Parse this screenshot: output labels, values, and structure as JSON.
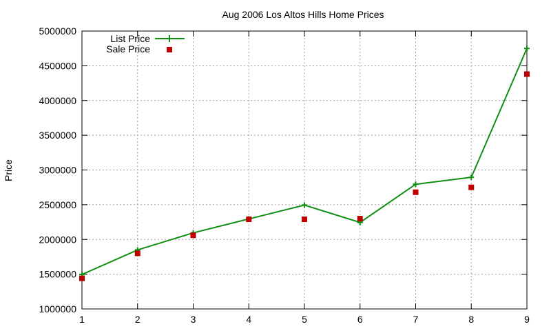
{
  "chart_data": {
    "type": "line",
    "title": "Aug 2006 Los Altos Hills Home Prices",
    "xlabel": "",
    "ylabel": "Price",
    "xlim": [
      1,
      9
    ],
    "ylim": [
      1000000,
      5000000
    ],
    "x_ticks": [
      1,
      2,
      3,
      4,
      5,
      6,
      7,
      8,
      9
    ],
    "y_ticks": [
      1000000,
      1500000,
      2000000,
      2500000,
      3000000,
      3500000,
      4000000,
      4500000,
      5000000
    ],
    "grid": true,
    "legend_position": "top-left",
    "x": [
      1,
      2,
      3,
      4,
      5,
      6,
      7,
      8,
      9
    ],
    "series": [
      {
        "name": "List Price",
        "style": "line+cross",
        "color": "#109010",
        "values": [
          1495000,
          1850000,
          2095000,
          2295000,
          2495000,
          2245000,
          2795000,
          2895000,
          4750000
        ]
      },
      {
        "name": "Sale Price",
        "style": "square-points",
        "color": "#c00000",
        "values": [
          1440000,
          1800000,
          2060000,
          2290000,
          2290000,
          2300000,
          2680000,
          2750000,
          4380000
        ]
      }
    ]
  }
}
